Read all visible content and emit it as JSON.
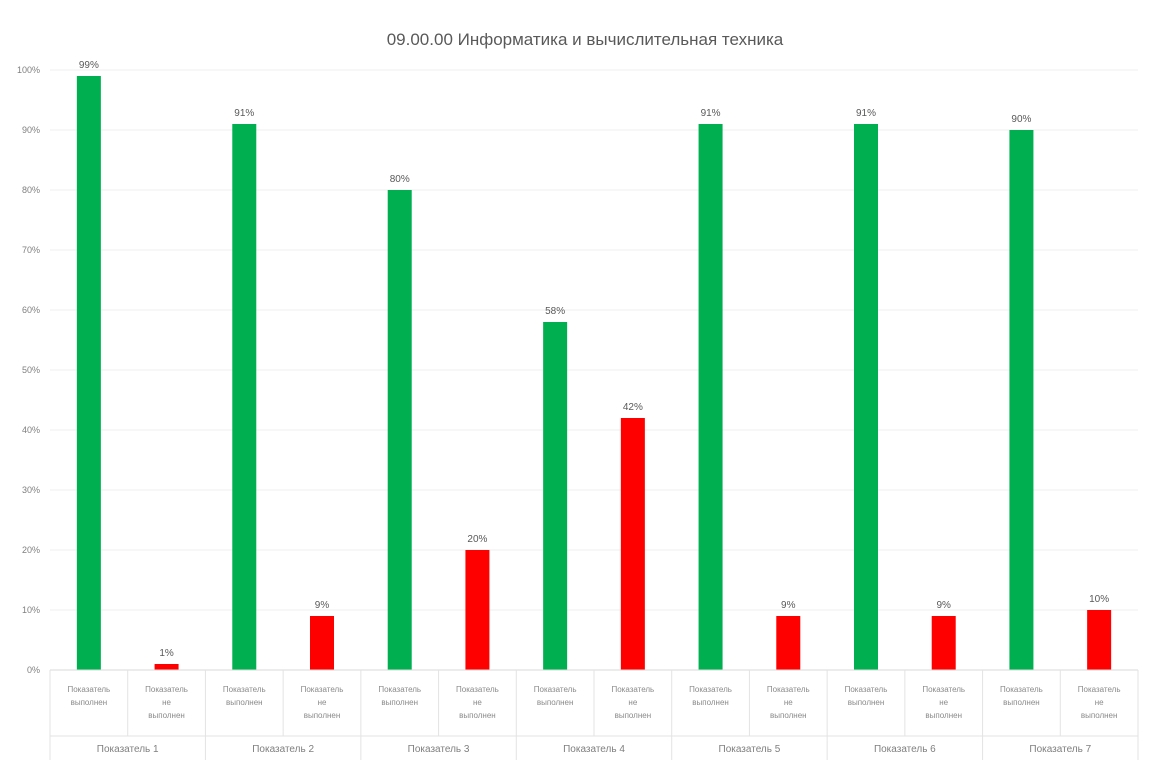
{
  "chart_data": {
    "type": "bar",
    "title": "09.00.00 Информатика и вычислительная техника",
    "ylim": [
      0,
      100
    ],
    "yticks": [
      "0%",
      "10%",
      "20%",
      "30%",
      "40%",
      "50%",
      "60%",
      "70%",
      "80%",
      "90%",
      "100%"
    ],
    "grid": true,
    "legend": "none",
    "groups": [
      {
        "label": "Показатель 1",
        "bars": [
          {
            "category": "Показатель выполнен",
            "value": 99,
            "label": "99%",
            "color": "#00b050"
          },
          {
            "category": "Показатель не выполнен",
            "value": 1,
            "label": "1%",
            "color": "#ff0000"
          }
        ]
      },
      {
        "label": "Показатель 2",
        "bars": [
          {
            "category": "Показатель выполнен",
            "value": 91,
            "label": "91%",
            "color": "#00b050"
          },
          {
            "category": "Показатель не выполнен",
            "value": 9,
            "label": "9%",
            "color": "#ff0000"
          }
        ]
      },
      {
        "label": "Показатель 3",
        "bars": [
          {
            "category": "Показатель выполнен",
            "value": 80,
            "label": "80%",
            "color": "#00b050"
          },
          {
            "category": "Показатель не выполнен",
            "value": 20,
            "label": "20%",
            "color": "#ff0000"
          }
        ]
      },
      {
        "label": "Показатель 4",
        "bars": [
          {
            "category": "Показатель выполнен",
            "value": 58,
            "label": "58%",
            "color": "#00b050"
          },
          {
            "category": "Показатель не выполнен",
            "value": 42,
            "label": "42%",
            "color": "#ff0000"
          }
        ]
      },
      {
        "label": "Показатель 5",
        "bars": [
          {
            "category": "Показатель выполнен",
            "value": 91,
            "label": "91%",
            "color": "#00b050"
          },
          {
            "category": "Показатель не выполнен",
            "value": 9,
            "label": "9%",
            "color": "#ff0000"
          }
        ]
      },
      {
        "label": "Показатель 6",
        "bars": [
          {
            "category": "Показатель выполнен",
            "value": 91,
            "label": "91%",
            "color": "#00b050"
          },
          {
            "category": "Показатель не выполнен",
            "value": 9,
            "label": "9%",
            "color": "#ff0000"
          }
        ]
      },
      {
        "label": "Показатель 7",
        "bars": [
          {
            "category": "Показатель выполнен",
            "value": 90,
            "label": "90%",
            "color": "#00b050"
          },
          {
            "category": "Показатель не выполнен",
            "value": 10,
            "label": "10%",
            "color": "#ff0000"
          }
        ]
      }
    ]
  }
}
